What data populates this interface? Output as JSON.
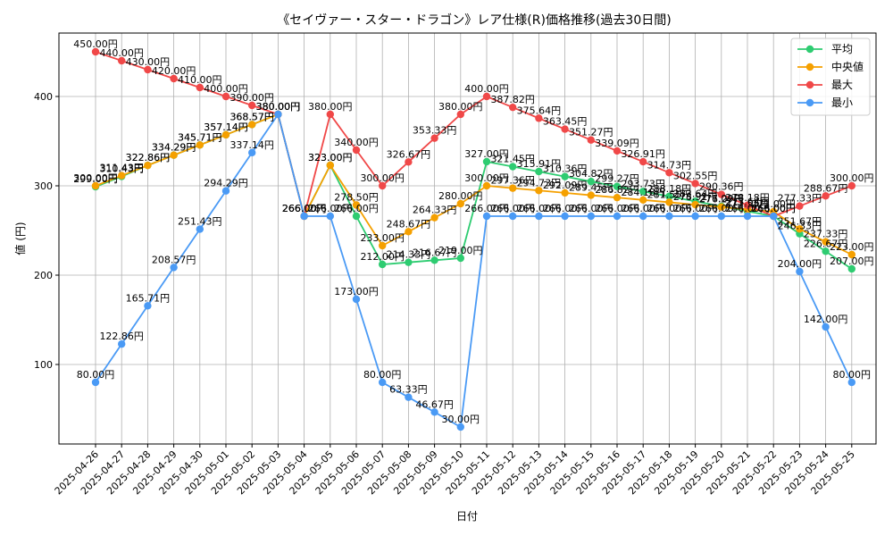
{
  "chart_data": {
    "type": "line",
    "title": "《セイヴァー・スター・ドラゴン》レア仕様(R)価格推移(過去30日間)",
    "xlabel": "日付",
    "ylabel": "値 (円)",
    "ylim": [
      11,
      471
    ],
    "yticks": [
      100,
      200,
      300,
      400
    ],
    "grid": true,
    "legend_position": "top-right",
    "value_suffix": "円",
    "x": [
      "2025-04-26",
      "2025-04-27",
      "2025-04-28",
      "2025-04-29",
      "2025-04-30",
      "2025-05-01",
      "2025-05-02",
      "2025-05-03",
      "2025-05-04",
      "2025-05-05",
      "2025-05-06",
      "2025-05-07",
      "2025-05-08",
      "2025-05-09",
      "2025-05-10",
      "2025-05-11",
      "2025-05-12",
      "2025-05-13",
      "2025-05-14",
      "2025-05-15",
      "2025-05-16",
      "2025-05-17",
      "2025-05-18",
      "2025-05-19",
      "2025-05-20",
      "2025-05-21",
      "2025-05-22",
      "2025-05-23",
      "2025-05-24",
      "2025-05-25"
    ],
    "series": [
      {
        "name": "平均",
        "color": "#2ecc71",
        "values": [
          299.0,
          310.43,
          322.86,
          334.29,
          345.71,
          357.14,
          368.57,
          380.0,
          266.0,
          323.0,
          266.0,
          212.0,
          214.33,
          216.67,
          219.0,
          327.0,
          321.45,
          315.91,
          310.36,
          304.82,
          299.27,
          293.73,
          288.18,
          282.64,
          277.09,
          271.55,
          266.0,
          246.33,
          226.67,
          207.0
        ]
      },
      {
        "name": "中央値",
        "color": "#f5a000",
        "values": [
          300.0,
          311.43,
          322.86,
          334.29,
          345.71,
          357.14,
          368.57,
          380.0,
          266.0,
          323.0,
          278.5,
          233.0,
          248.67,
          264.33,
          280.0,
          300.0,
          297.36,
          294.73,
          292.09,
          289.45,
          286.82,
          284.18,
          281.55,
          278.91,
          276.27,
          273.64,
          271.0,
          251.67,
          237.33,
          223.0
        ]
      },
      {
        "name": "最大",
        "color": "#f04848",
        "values": [
          450.0,
          440.0,
          430.0,
          420.0,
          410.0,
          400.0,
          390.0,
          380.0,
          266.0,
          380.0,
          340.0,
          300.0,
          326.67,
          353.33,
          380.0,
          400.0,
          387.82,
          375.64,
          363.45,
          351.27,
          339.09,
          326.91,
          314.73,
          302.55,
          290.36,
          278.18,
          266.0,
          277.33,
          288.67,
          300.0
        ]
      },
      {
        "name": "最小",
        "color": "#4a9af5",
        "values": [
          80.0,
          122.86,
          165.71,
          208.57,
          251.43,
          294.29,
          337.14,
          380.0,
          266.0,
          266.0,
          173.0,
          80.0,
          63.33,
          46.67,
          30.0,
          266.0,
          266.0,
          266.0,
          266.0,
          266.0,
          266.0,
          266.0,
          266.0,
          266.0,
          266.0,
          266.0,
          266.0,
          204.0,
          142.0,
          80.0
        ]
      }
    ]
  }
}
